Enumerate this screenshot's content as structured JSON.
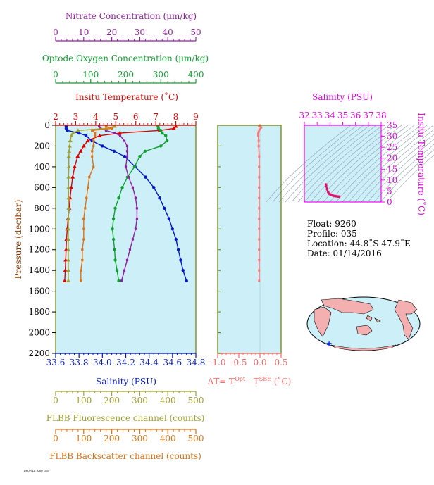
{
  "colors": {
    "temperature": "#e00000",
    "salinity": "#0018c8",
    "oxygen": "#10a030",
    "nitrate": "#9020a0",
    "fluorescence": "#a0a030",
    "backscatter": "#e07010",
    "delta_t": "#ff7070",
    "ts_axis": "#ff00ff",
    "plot_bg": "#cdeff8",
    "frame_green": "#6a7a00"
  },
  "axes": {
    "nitrate": {
      "label": "Nitrate Concentration (μm/kg)",
      "min": 0,
      "max": 50,
      "ticks": [
        "0",
        "10",
        "20",
        "30",
        "40",
        "50"
      ]
    },
    "oxygen": {
      "label": "Optode Oxygen Concentration (μm/kg)",
      "min": 0,
      "max": 400,
      "ticks": [
        "0",
        "100",
        "200",
        "300",
        "400"
      ]
    },
    "temperature": {
      "label": "Insitu Temperature (˚C)",
      "min": 2,
      "max": 9,
      "ticks": [
        "2",
        "3",
        "4",
        "5",
        "6",
        "7",
        "8",
        "9"
      ]
    },
    "pressure": {
      "label": "Pressure (decibar)",
      "min": 0,
      "max": 2200,
      "ticks": [
        "0",
        "200",
        "400",
        "600",
        "800",
        "1000",
        "1200",
        "1400",
        "1600",
        "1800",
        "2000",
        "2200"
      ]
    },
    "salinity": {
      "label": "Salinity (PSU)",
      "min": 33.6,
      "max": 34.8,
      "ticks": [
        "33.6",
        "33.8",
        "34.0",
        "34.2",
        "34.4",
        "34.6",
        "34.8"
      ]
    },
    "fluorescence": {
      "label": "FLBB Fluorescence channel (counts)",
      "min": 0,
      "max": 500,
      "ticks": [
        "0",
        "100",
        "200",
        "300",
        "400",
        "500"
      ]
    },
    "backscatter": {
      "label": "FLBB Backscatter channel (counts)",
      "min": 0,
      "max": 500,
      "ticks": [
        "0",
        "100",
        "200",
        "300",
        "400",
        "500"
      ]
    },
    "delta_t": {
      "label": "ΔT= T",
      "sup1": "Opt",
      "mid": " - T",
      "sup2": "SBE",
      "tail": " (˚C)",
      "min": -1.0,
      "max": 0.5,
      "ticks": [
        "-1.0",
        "-0.5",
        "0.0",
        "0.5"
      ]
    },
    "ts_salinity": {
      "label": "Salinity (PSU)",
      "min": 32,
      "max": 38,
      "ticks": [
        "32",
        "33",
        "34",
        "35",
        "36",
        "37",
        "38"
      ]
    },
    "ts_temperature": {
      "label": "Insitu Temperature (˚C)",
      "min": 0,
      "max": 35,
      "ticks": [
        "0",
        "5",
        "10",
        "15",
        "20",
        "25",
        "30",
        "35"
      ]
    }
  },
  "info": {
    "float": "Float:  9260",
    "profile": "Profile:  035",
    "location": "Location:  44.8˚S  47.9˚E",
    "date": "Date:  01/14/2016"
  },
  "footer_text": "PROFILE 9260_035",
  "chart_data": [
    {
      "type": "line",
      "pressure": [
        10,
        30,
        50,
        75,
        100,
        150,
        200,
        250,
        300,
        400,
        500,
        600,
        700,
        800,
        900,
        1000,
        1100,
        1200,
        1300,
        1400,
        1500
      ],
      "series": [
        {
          "key": "temperature",
          "name": "Insitu Temperature (˚C)",
          "values": [
            8.0,
            7.9,
            7.2,
            5.2,
            4.2,
            3.6,
            3.4,
            3.25,
            3.1,
            2.95,
            2.85,
            2.78,
            2.72,
            2.68,
            2.62,
            2.58,
            2.54,
            2.52,
            2.5,
            2.48,
            2.45
          ]
        },
        {
          "key": "salinity",
          "name": "Salinity (PSU)",
          "values": [
            33.69,
            33.69,
            33.7,
            33.8,
            33.86,
            33.91,
            34.0,
            34.1,
            34.19,
            34.28,
            34.37,
            34.44,
            34.49,
            34.53,
            34.57,
            34.6,
            34.63,
            34.65,
            34.67,
            34.69,
            34.72
          ]
        },
        {
          "key": "oxygen",
          "name": "Optode Oxygen Concentration (μm/kg)",
          "values": [
            292,
            293,
            300,
            304,
            314,
            318,
            300,
            255,
            240,
            225,
            205,
            190,
            180,
            170,
            165,
            162,
            165,
            168,
            170,
            175,
            180
          ]
        },
        {
          "key": "nitrate",
          "name": "Nitrate Concentration (μm/kg)",
          "values": [
            15.5,
            16,
            18,
            21,
            23,
            24.5,
            25.5,
            25.5,
            25.5,
            25,
            26,
            27.5,
            28.5,
            29,
            29,
            28.5,
            27.5,
            26.5,
            25.5,
            24.5,
            23.5
          ]
        },
        {
          "key": "fluorescence",
          "name": "FLBB Fluorescence channel (counts)",
          "values": [
            210,
            180,
            80,
            62,
            56,
            52,
            50,
            48,
            47,
            47,
            46,
            46,
            46,
            46,
            46,
            45,
            45,
            45,
            45,
            45,
            45
          ]
        },
        {
          "key": "backscatter",
          "name": "FLBB Backscatter channel (counts)",
          "values": [
            180,
            200,
            130,
            140,
            140,
            135,
            135,
            130,
            130,
            135,
            120,
            115,
            110,
            105,
            100,
            100,
            100,
            95,
            95,
            90,
            90
          ]
        }
      ]
    },
    {
      "type": "line",
      "name": "delta_t",
      "pressure": [
        0,
        10,
        20,
        40,
        60,
        80,
        100,
        150,
        200,
        300,
        400,
        500,
        600,
        700,
        800,
        900,
        1000,
        1100,
        1200,
        1300,
        1400,
        1500
      ],
      "values": [
        0.0,
        -0.02,
        0.03,
        -0.01,
        -0.03,
        -0.04,
        -0.04,
        -0.03,
        -0.03,
        -0.02,
        -0.02,
        -0.02,
        -0.02,
        -0.02,
        -0.02,
        -0.02,
        -0.02,
        -0.02,
        -0.02,
        -0.02,
        -0.02,
        -0.02
      ]
    },
    {
      "type": "scatter",
      "name": "ts_diagram",
      "salinity": [
        33.69,
        33.7,
        33.78,
        33.86,
        33.95,
        34.05,
        34.15,
        34.25,
        34.35,
        34.45,
        34.55,
        34.65,
        34.72
      ],
      "temperature": [
        8.0,
        7.4,
        5.8,
        4.5,
        3.8,
        3.4,
        3.1,
        2.9,
        2.75,
        2.65,
        2.55,
        2.5,
        2.45
      ]
    }
  ]
}
